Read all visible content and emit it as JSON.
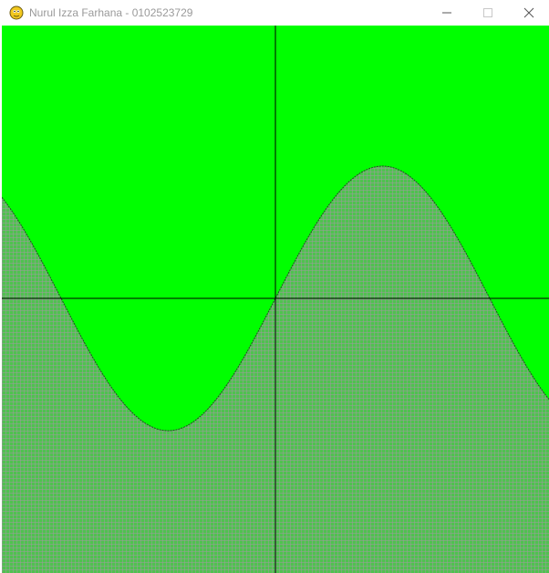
{
  "window": {
    "title": "Nurul Izza Farhana - 0102523729",
    "app_icon": "pygame-snake-icon",
    "controls": [
      "minimize-icon",
      "maximize-icon",
      "close-icon"
    ]
  },
  "canvas": {
    "background_color": "#00ff00",
    "fill_color": "#4fc24f",
    "grid_line_color": "#9a9a9a",
    "axis_color": "#000000",
    "curve_color": "#1f4d1f",
    "curve": "sine"
  }
}
